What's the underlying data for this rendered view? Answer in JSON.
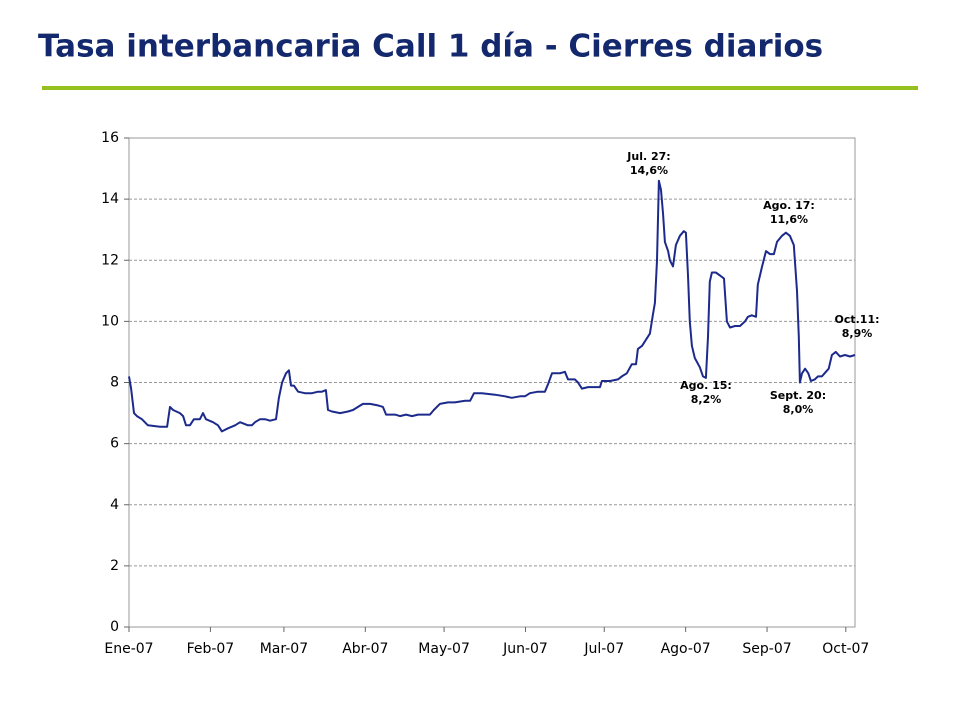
{
  "chart_data": {
    "type": "line",
    "title": "Tasa interbancaria Call 1 día - Cierres diarios",
    "x": [
      0,
      0.8,
      1.9,
      3.0,
      4.9,
      7.2,
      11.8,
      14.5,
      15.6,
      16.8,
      19.4,
      20.6,
      21.7,
      23.2,
      24.7,
      27.0,
      28.2,
      29.3,
      32.0,
      33.9,
      35.4,
      37.7,
      40.4,
      42.3,
      45.3,
      46.8,
      48.0,
      49.9,
      51.8,
      53.7,
      56.0,
      57.1,
      58.3,
      59.8,
      60.9,
      61.7,
      62.8,
      64.4,
      67.0,
      69.7,
      72.0,
      73.5,
      75.0,
      75.8,
      77.3,
      80.4,
      83.4,
      85.3,
      87.2,
      89.1,
      91.8,
      94.8,
      96.7,
      97.9,
      101.3,
      103.2,
      105.5,
      107.8,
      110.1,
      112.3,
      114.6,
      116.1,
      118.4,
      121.5,
      124.1,
      128.0,
      129.9,
      131.4,
      134.4,
      139.4,
      143.2,
      145.8,
      148.9,
      150.8,
      152.7,
      155.7,
      158.4,
      159.6,
      161.1,
      164.1,
      166.0,
      167.2,
      169.8,
      171.0,
      172.5,
      174.8,
      177.5,
      179.4,
      180.1,
      183.2,
      186.2,
      187.7,
      189.6,
      191.5,
      193.1,
      193.8,
      195.4,
      196.9,
      198.4,
      199.5,
      200.3,
      201.1,
      201.8,
      202.6,
      203.4,
      204.1,
      205.3,
      206.0,
      207.2,
      208.3,
      209.8,
      211.3,
      212.1,
      212.9,
      213.6,
      214.4,
      215.5,
      217.4,
      218.6,
      219.7,
      220.5,
      221.2,
      222.0,
      223.5,
      225.1,
      226.6,
      227.7,
      228.9,
      230.8,
      232.7,
      234.6,
      235.7,
      237.2,
      238.8,
      239.5,
      241.1,
      242.6,
      244.1,
      245.6,
      246.8,
      248.7,
      250.2,
      251.7,
      253.2,
      254.4,
      255.1,
      255.5,
      256.3,
      257.5,
      258.7,
      259.7,
      261.2,
      262.4,
      263.9,
      265.4,
      266.5,
      267.7,
      269.2,
      270.8,
      272.7,
      274.6,
      276.5
    ],
    "values": [
      8.2,
      7.8,
      7.0,
      6.9,
      6.8,
      6.6,
      6.55,
      6.55,
      7.2,
      7.1,
      7.0,
      6.9,
      6.6,
      6.6,
      6.8,
      6.8,
      7.0,
      6.8,
      6.7,
      6.6,
      6.4,
      6.5,
      6.6,
      6.7,
      6.6,
      6.6,
      6.7,
      6.8,
      6.8,
      6.75,
      6.8,
      7.5,
      8.0,
      8.3,
      8.4,
      7.9,
      7.9,
      7.7,
      7.65,
      7.65,
      7.7,
      7.7,
      7.75,
      7.1,
      7.05,
      7.0,
      7.05,
      7.1,
      7.2,
      7.3,
      7.3,
      7.25,
      7.2,
      6.95,
      6.95,
      6.9,
      6.95,
      6.9,
      6.95,
      6.95,
      6.95,
      7.1,
      7.3,
      7.35,
      7.35,
      7.4,
      7.4,
      7.65,
      7.65,
      7.6,
      7.55,
      7.5,
      7.55,
      7.55,
      7.65,
      7.7,
      7.7,
      7.95,
      8.3,
      8.3,
      8.35,
      8.1,
      8.1,
      8.0,
      7.8,
      7.85,
      7.85,
      7.85,
      8.05,
      8.05,
      8.1,
      8.2,
      8.3,
      8.6,
      8.6,
      9.1,
      9.2,
      9.4,
      9.6,
      10.2,
      10.6,
      12.0,
      14.6,
      14.3,
      13.5,
      12.6,
      12.3,
      12.0,
      11.8,
      12.5,
      12.8,
      12.95,
      12.9,
      11.5,
      10.0,
      9.2,
      8.8,
      8.5,
      8.2,
      8.15,
      9.5,
      11.3,
      11.6,
      11.6,
      11.5,
      11.4,
      10.0,
      9.8,
      9.85,
      9.85,
      10.0,
      10.15,
      10.2,
      10.15,
      11.2,
      11.8,
      12.3,
      12.2,
      12.2,
      12.6,
      12.8,
      12.9,
      12.8,
      12.5,
      11.0,
      9.5,
      8.0,
      8.3,
      8.45,
      8.3,
      8.05,
      8.1,
      8.2,
      8.2,
      8.35,
      8.45,
      8.9,
      9.0,
      8.85,
      8.9,
      8.85,
      8.9
    ],
    "color": "#1c2a8c",
    "xlim": [
      0,
      276.5
    ],
    "xticks": [
      {
        "value": 0,
        "label": "Ene-07"
      },
      {
        "value": 31,
        "label": "Feb-07"
      },
      {
        "value": 59,
        "label": "Mar-07"
      },
      {
        "value": 90,
        "label": "Abr-07"
      },
      {
        "value": 120,
        "label": "May-07"
      },
      {
        "value": 151,
        "label": "Jun-07"
      },
      {
        "value": 181,
        "label": "Jul-07"
      },
      {
        "value": 212,
        "label": "Ago-07"
      },
      {
        "value": 243,
        "label": "Sep-07"
      },
      {
        "value": 273,
        "label": "Oct-07"
      }
    ],
    "ylim": [
      0,
      16
    ],
    "yticks": [
      0,
      2,
      4,
      6,
      8,
      10,
      12,
      14,
      16
    ],
    "grid": true,
    "annotations": [
      {
        "lines": [
          "Jul. 27:",
          "14,6%"
        ]
      },
      {
        "lines": [
          "Ago. 17:",
          "11,6%"
        ]
      },
      {
        "lines": [
          "Ago. 15:",
          "8,2%"
        ]
      },
      {
        "lines": [
          "Sept. 20:",
          "8,0%"
        ]
      },
      {
        "lines": [
          "Oct.11:",
          "8,9%"
        ]
      }
    ]
  }
}
